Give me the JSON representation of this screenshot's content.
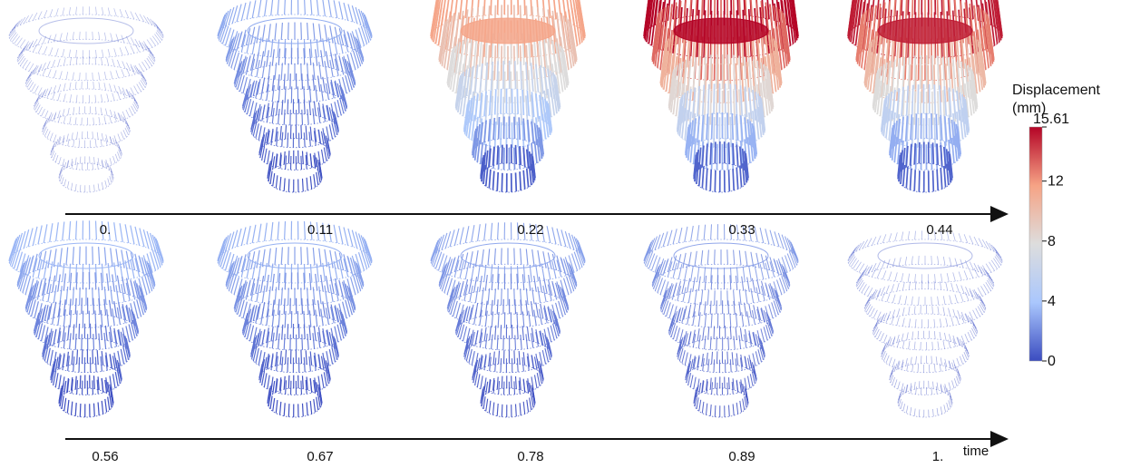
{
  "rows": [
    {
      "frames": [
        {
          "time": "0.",
          "max_displacement": 0.6
        },
        {
          "time": "0.11",
          "max_displacement": 3.0
        },
        {
          "time": "0.22",
          "max_displacement": 11.5
        },
        {
          "time": "0.33",
          "max_displacement": 15.61
        },
        {
          "time": "0.44",
          "max_displacement": 15.0
        }
      ],
      "axis_label": ""
    },
    {
      "frames": [
        {
          "time": "0.56",
          "max_displacement": 3.4
        },
        {
          "time": "0.67",
          "max_displacement": 3.2
        },
        {
          "time": "0.78",
          "max_displacement": 2.8
        },
        {
          "time": "0.89",
          "max_displacement": 2.4
        },
        {
          "time": "1.",
          "max_displacement": 0.8
        }
      ],
      "axis_label": "time"
    }
  ],
  "colorbar": {
    "title_line1": "Displacement",
    "title_line2": "(mm)",
    "min": 0,
    "max": 15.61,
    "ticks": [
      "15.61",
      "12",
      "8",
      "4",
      "0"
    ],
    "tick_values": [
      15.61,
      12,
      8,
      4,
      0
    ],
    "colormap": [
      "#3b4cc0",
      "#aac7fd",
      "#dddddd",
      "#f6a385",
      "#b40426"
    ]
  }
}
